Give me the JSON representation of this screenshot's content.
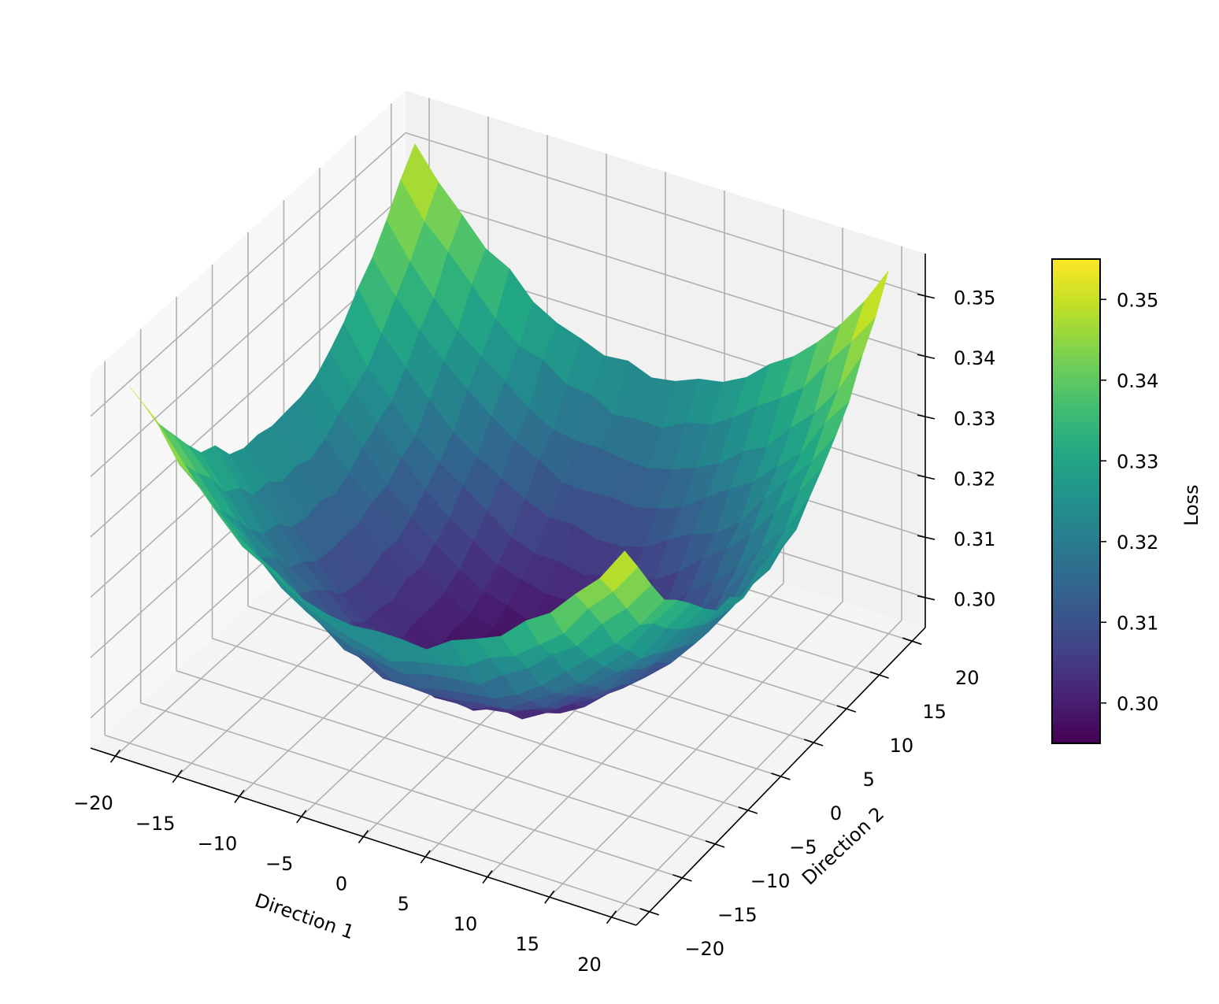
{
  "chart_data": {
    "type": "surface3d",
    "title": "",
    "xlabel": "Direction 1",
    "ylabel": "Direction 2",
    "zlabel": "",
    "colorbar_label": "Loss",
    "colormap": "viridis",
    "xlim": [
      -22,
      22
    ],
    "ylim": [
      -22,
      22
    ],
    "zlim": [
      0.295,
      0.357
    ],
    "x_ticks": [
      -20,
      -15,
      -10,
      -5,
      0,
      5,
      10,
      15,
      20
    ],
    "y_ticks": [
      -20,
      -15,
      -10,
      -5,
      0,
      5,
      10,
      15,
      20
    ],
    "z_ticks": [
      0.3,
      0.31,
      0.32,
      0.33,
      0.34,
      0.35
    ],
    "x_tick_labels": [
      "−20",
      "−15",
      "−10",
      "−5",
      "0",
      "5",
      "10",
      "15",
      "20"
    ],
    "y_tick_labels": [
      "−20",
      "−15",
      "−10",
      "−5",
      "0",
      "5",
      "10",
      "15",
      "20"
    ],
    "z_tick_labels": [
      "0.30",
      "0.31",
      "0.32",
      "0.33",
      "0.34",
      "0.35"
    ],
    "colorbar_ticks": [
      "0.30",
      "0.31",
      "0.32",
      "0.33",
      "0.34",
      "0.35"
    ],
    "colorbar_range": [
      0.295,
      0.355
    ],
    "grid": true,
    "surface": {
      "description": "Bowl-shaped loss landscape, minimum near (0,0)",
      "min_loss": 0.296,
      "max_loss": 0.355,
      "grid_points": 21,
      "x_range": [
        -20,
        20
      ],
      "y_range": [
        -20,
        20
      ],
      "corner_values": {
        "x-20_y-20": 0.355,
        "x20_y-20": 0.353,
        "x-20_y20": 0.352,
        "x20_y20": 0.355
      },
      "center_value": 0.296
    }
  },
  "colors": {
    "pane_left": "#f7f7f7",
    "pane_back": "#f1f1f1",
    "pane_floor": "#f4f4f4",
    "gridline": "#b0b0b0",
    "axis": "#000000"
  }
}
